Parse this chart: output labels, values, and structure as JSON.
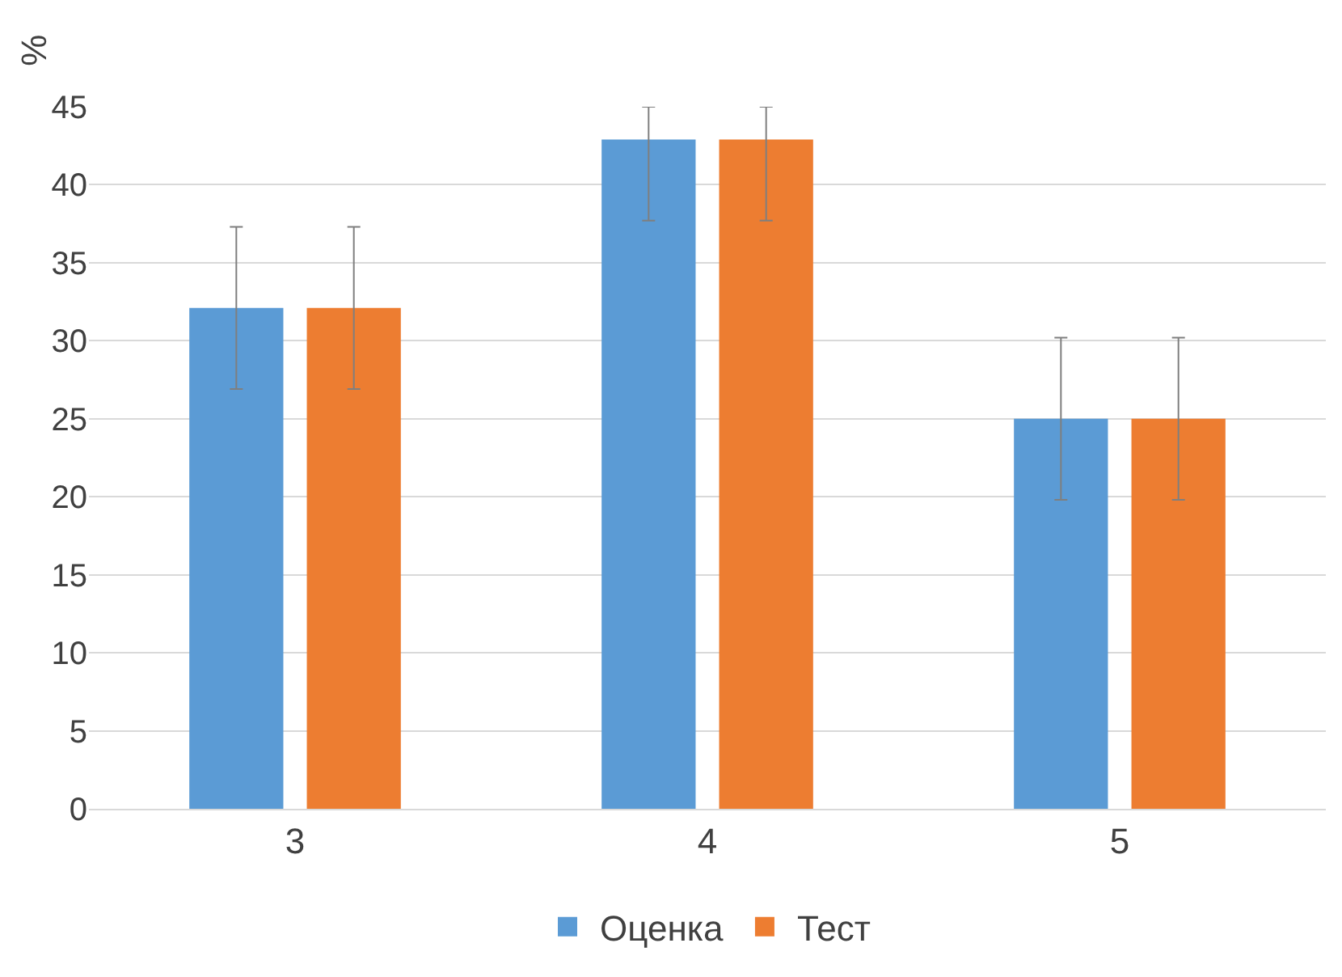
{
  "chart_data": {
    "type": "bar",
    "ylabel": "%",
    "categories": [
      "3",
      "4",
      "5"
    ],
    "series": [
      {
        "name": "Оценка",
        "color": "#5b9bd5",
        "values": [
          32.1,
          42.9,
          25.0
        ],
        "errors": [
          5.2,
          [
            37.7,
            45
          ],
          5.2
        ]
      },
      {
        "name": "Тест",
        "color": "#ed7d31",
        "values": [
          32.1,
          42.9,
          25.0
        ],
        "errors": [
          5.2,
          [
            37.7,
            45
          ],
          5.2
        ]
      }
    ],
    "ylim": [
      0,
      45
    ],
    "yticks": [
      0,
      5,
      10,
      15,
      20,
      25,
      30,
      35,
      40,
      45
    ],
    "grid": "y",
    "legend": "bottom"
  }
}
